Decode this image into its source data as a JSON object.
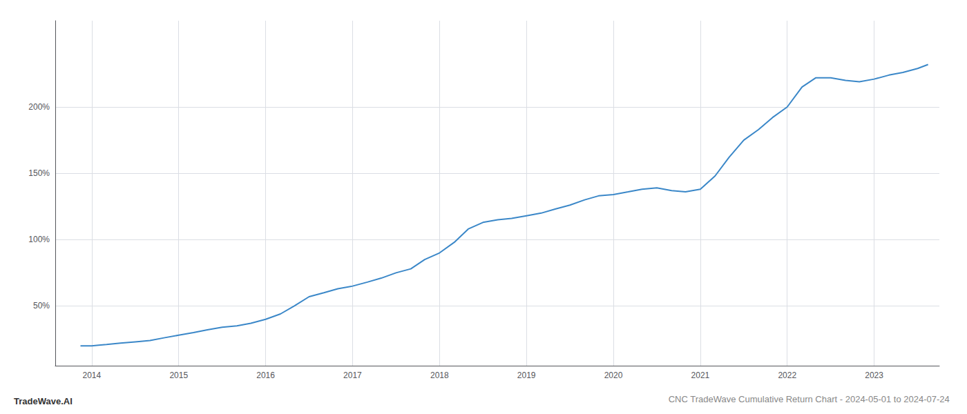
{
  "chart_data": {
    "type": "line",
    "title": "CNC TradeWave Cumulative Return Chart - 2024-05-01 to 2024-07-24",
    "annotations": [
      "TradeWave.AI"
    ],
    "x": [
      2013.87,
      2014.0,
      2014.08,
      2014.17,
      2014.33,
      2014.5,
      2014.67,
      2014.83,
      2015.0,
      2015.17,
      2015.33,
      2015.5,
      2015.67,
      2015.83,
      2016.0,
      2016.17,
      2016.33,
      2016.5,
      2016.67,
      2016.83,
      2017.0,
      2017.17,
      2017.33,
      2017.5,
      2017.67,
      2017.83,
      2018.0,
      2018.17,
      2018.33,
      2018.5,
      2018.67,
      2018.83,
      2019.0,
      2019.17,
      2019.33,
      2019.5,
      2019.67,
      2019.83,
      2020.0,
      2020.17,
      2020.33,
      2020.5,
      2020.67,
      2020.83,
      2021.0,
      2021.17,
      2021.33,
      2021.5,
      2021.67,
      2021.83,
      2022.0,
      2022.17,
      2022.33,
      2022.5,
      2022.67,
      2022.83,
      2023.0,
      2023.17,
      2023.33,
      2023.5,
      2023.62
    ],
    "values": [
      20,
      20,
      20.5,
      21,
      22,
      23,
      24,
      26,
      28,
      30,
      32,
      34,
      35,
      37,
      40,
      44,
      50,
      57,
      60,
      63,
      65,
      68,
      71,
      75,
      78,
      85,
      90,
      98,
      108,
      113,
      115,
      116,
      118,
      120,
      123,
      126,
      130,
      133,
      134,
      136,
      138,
      139,
      137,
      136,
      138,
      148,
      162,
      175,
      183,
      192,
      200,
      215,
      222,
      222,
      220,
      219,
      221,
      224,
      226,
      229,
      232
    ],
    "color": "#3a87c8",
    "xlim": [
      2013.58,
      2023.75
    ],
    "xticks": [
      2014,
      2015,
      2016,
      2017,
      2018,
      2019,
      2020,
      2021,
      2022,
      2023
    ],
    "ylim": [
      5,
      265
    ],
    "yticks": [
      {
        "value": 50,
        "label": "50%"
      },
      {
        "value": 100,
        "label": "100%"
      },
      {
        "value": 150,
        "label": "150%"
      },
      {
        "value": 200,
        "label": "200%"
      }
    ],
    "grid": true
  }
}
